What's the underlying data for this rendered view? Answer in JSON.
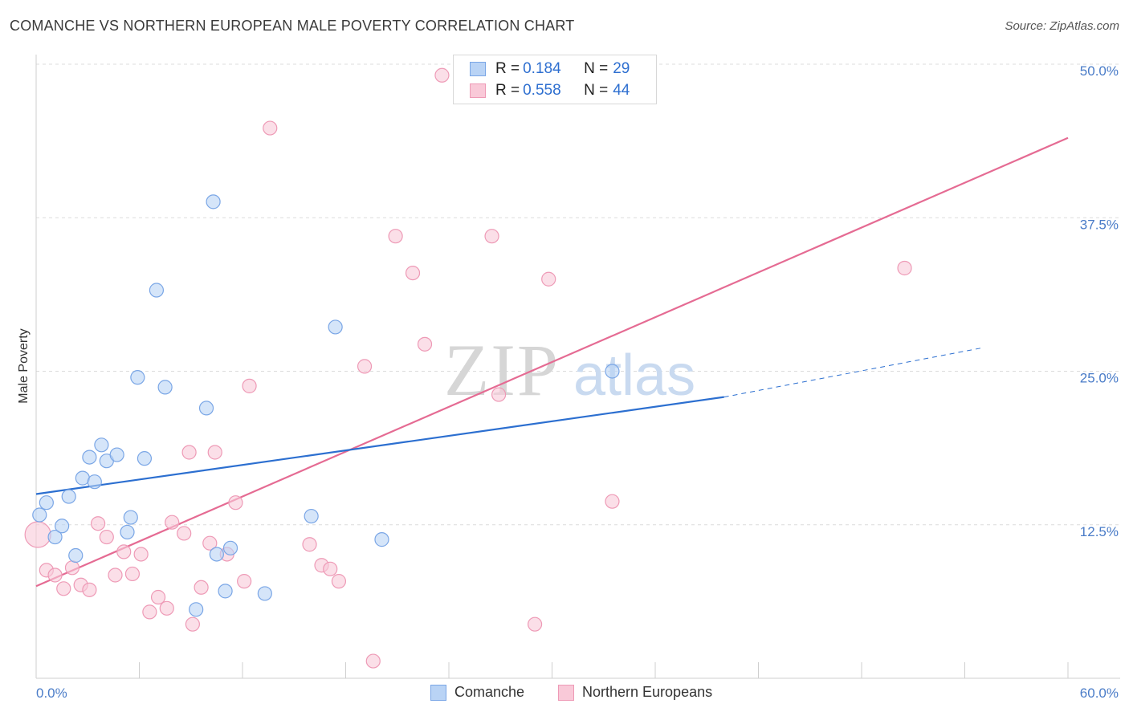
{
  "title": "COMANCHE VS NORTHERN EUROPEAN MALE POVERTY CORRELATION CHART",
  "source": "Source: ZipAtlas.com",
  "colors": {
    "blue_fill": "#b9d3f5",
    "blue_stroke": "#7aa6e6",
    "blue_line": "#2c6fd0",
    "pink_fill": "#f9c9d8",
    "pink_stroke": "#ee9ab6",
    "pink_line": "#e56b93",
    "tick_text": "#4a7cc8"
  },
  "legend": {
    "rows": [
      {
        "r_label": "R =",
        "r_value": "0.184",
        "n_label": "N =",
        "n_value": "29"
      },
      {
        "r_label": "R =",
        "r_value": "0.558",
        "n_label": "N =",
        "n_value": "44"
      }
    ]
  },
  "bottom_legend": {
    "items": [
      "Comanche",
      "Northern Europeans"
    ]
  },
  "watermark": {
    "part1": "ZIP",
    "part2": "atlas"
  },
  "chart_data": {
    "type": "scatter",
    "title": "COMANCHE VS NORTHERN EUROPEAN MALE POVERTY CORRELATION CHART",
    "xlabel": "",
    "ylabel": "Male Poverty",
    "xlim": [
      0,
      60
    ],
    "ylim": [
      0,
      50
    ],
    "x_tick_labels": [
      "0.0%",
      "60.0%"
    ],
    "y_ticks": [
      12.5,
      25.0,
      37.5,
      50.0
    ],
    "y_tick_labels": [
      "12.5%",
      "25.0%",
      "37.5%",
      "50.0%"
    ],
    "grid": true,
    "legend_position": "top-center",
    "series": [
      {
        "name": "Comanche",
        "r": 0.184,
        "n": 29,
        "points": [
          [
            0.2,
            13.3
          ],
          [
            0.6,
            14.3
          ],
          [
            1.1,
            11.5
          ],
          [
            1.5,
            12.4
          ],
          [
            1.9,
            14.8
          ],
          [
            2.3,
            10.0
          ],
          [
            2.7,
            16.3
          ],
          [
            3.1,
            18.0
          ],
          [
            3.4,
            16.0
          ],
          [
            3.8,
            19.0
          ],
          [
            4.1,
            17.7
          ],
          [
            4.7,
            18.2
          ],
          [
            5.3,
            11.9
          ],
          [
            5.5,
            13.1
          ],
          [
            5.9,
            24.5
          ],
          [
            6.3,
            17.9
          ],
          [
            7.0,
            31.6
          ],
          [
            7.5,
            23.7
          ],
          [
            9.3,
            5.6
          ],
          [
            9.9,
            22.0
          ],
          [
            10.3,
            38.8
          ],
          [
            10.5,
            10.1
          ],
          [
            11.0,
            7.1
          ],
          [
            11.3,
            10.6
          ],
          [
            13.3,
            6.9
          ],
          [
            16.0,
            13.2
          ],
          [
            17.4,
            28.6
          ],
          [
            20.1,
            11.3
          ],
          [
            33.5,
            25.0
          ]
        ],
        "trend": {
          "x0": 0,
          "y0": 15.0,
          "x1": 40,
          "y1": 22.9,
          "dashed_to_x": 55,
          "dashed_to_y": 26.9
        }
      },
      {
        "name": "Northern Europeans",
        "r": 0.558,
        "n": 44,
        "points": [
          [
            0.1,
            11.7
          ],
          [
            0.6,
            8.8
          ],
          [
            1.1,
            8.4
          ],
          [
            1.6,
            7.3
          ],
          [
            2.1,
            9.0
          ],
          [
            2.6,
            7.6
          ],
          [
            3.1,
            7.2
          ],
          [
            3.6,
            12.6
          ],
          [
            4.1,
            11.5
          ],
          [
            4.6,
            8.4
          ],
          [
            5.1,
            10.3
          ],
          [
            5.6,
            8.5
          ],
          [
            6.1,
            10.1
          ],
          [
            6.6,
            5.4
          ],
          [
            7.1,
            6.6
          ],
          [
            7.6,
            5.7
          ],
          [
            7.9,
            12.7
          ],
          [
            8.6,
            11.8
          ],
          [
            8.9,
            18.4
          ],
          [
            9.1,
            4.4
          ],
          [
            9.6,
            7.4
          ],
          [
            10.1,
            11.0
          ],
          [
            10.4,
            18.4
          ],
          [
            11.1,
            10.1
          ],
          [
            11.6,
            14.3
          ],
          [
            12.1,
            7.9
          ],
          [
            12.4,
            23.8
          ],
          [
            13.6,
            44.8
          ],
          [
            15.9,
            10.9
          ],
          [
            16.6,
            9.2
          ],
          [
            17.1,
            8.9
          ],
          [
            17.6,
            7.9
          ],
          [
            19.1,
            25.4
          ],
          [
            19.6,
            1.4
          ],
          [
            20.9,
            36.0
          ],
          [
            21.9,
            33.0
          ],
          [
            22.6,
            27.2
          ],
          [
            23.6,
            49.1
          ],
          [
            26.5,
            36.0
          ],
          [
            26.9,
            23.1
          ],
          [
            29.0,
            4.4
          ],
          [
            29.8,
            32.5
          ],
          [
            33.5,
            14.4
          ],
          [
            50.5,
            33.4
          ]
        ],
        "trend": {
          "x0": 0,
          "y0": 7.5,
          "x1": 60,
          "y1": 44.0
        }
      }
    ]
  }
}
